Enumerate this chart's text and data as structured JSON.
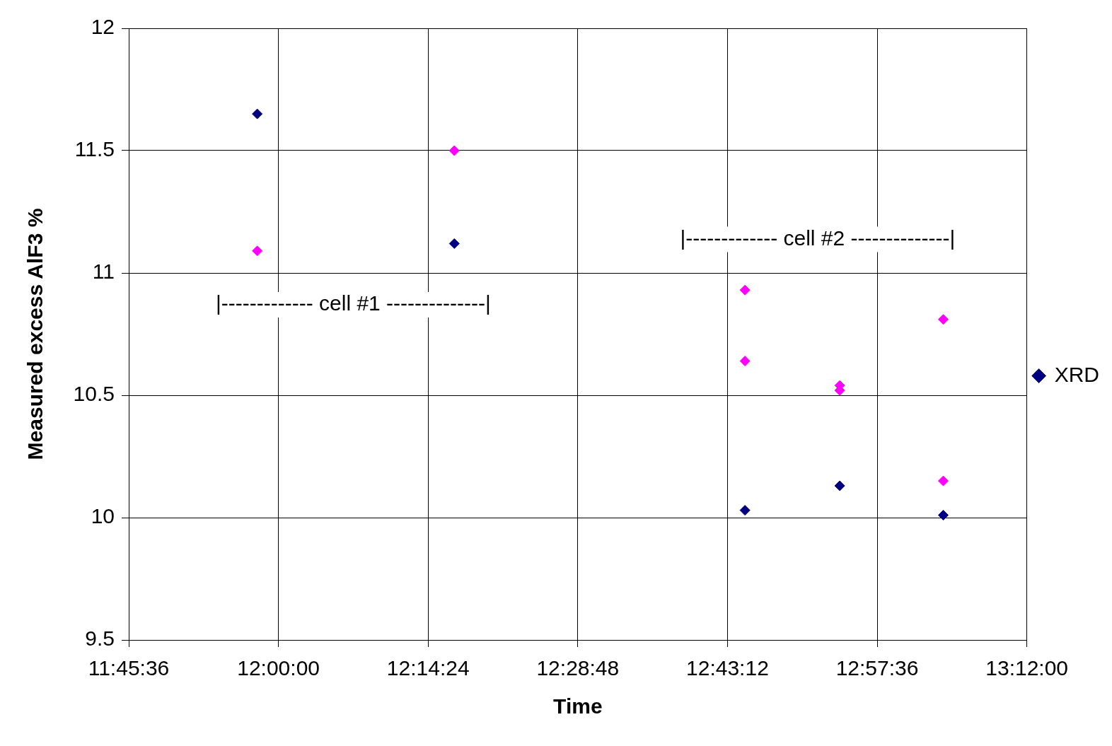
{
  "chart_data": {
    "type": "scatter",
    "xlabel": "Time",
    "ylabel": "Measured excess AlF3 %",
    "xlim": [
      11.76,
      13.2
    ],
    "xticks": [
      {
        "value": 11.76,
        "label": "11:45:36"
      },
      {
        "value": 12,
        "label": "12:00:00"
      },
      {
        "value": 12.24,
        "label": "12:14:24"
      },
      {
        "value": 12.48,
        "label": "12:28:48"
      },
      {
        "value": 12.72,
        "label": "12:43:12"
      },
      {
        "value": 12.96,
        "label": "12:57:36"
      },
      {
        "value": 13.2,
        "label": "13:12:00"
      }
    ],
    "ylim": [
      9.5,
      12
    ],
    "yticks": [
      9.5,
      10,
      10.5,
      11,
      11.5,
      12
    ],
    "grid": true,
    "legend": "right",
    "marker": "diamond",
    "series": [
      {
        "name": "XRD",
        "color": "#000080",
        "x": [
          11.966,
          12.282,
          12.748,
          12.9,
          13.066
        ],
        "values": [
          11.65,
          11.12,
          10.03,
          10.13,
          10.01
        ]
      },
      {
        "color": "#ff00ff",
        "x": [
          11.966,
          12.282,
          12.748,
          12.748,
          12.9,
          12.9,
          13.066,
          13.066
        ],
        "values": [
          11.09,
          11.5,
          10.93,
          10.64,
          10.54,
          10.52,
          10.81,
          10.15
        ]
      }
    ],
    "annotations": [
      "|------------- cell #1 --------------|",
      "|------------- cell #2 --------------|"
    ]
  }
}
